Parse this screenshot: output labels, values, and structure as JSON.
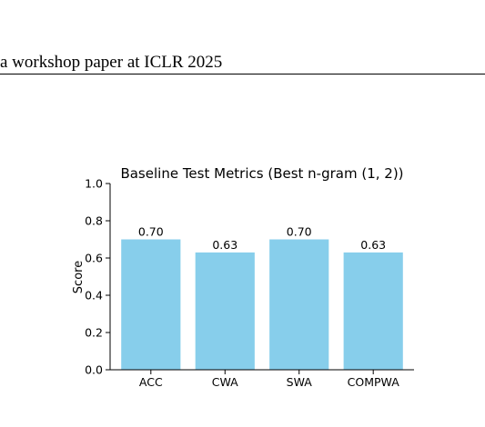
{
  "header": {
    "running_title": "a workshop paper at ICLR 2025"
  },
  "chart_data": {
    "type": "bar",
    "title": "Baseline Test Metrics (Best n-gram (1, 2))",
    "xlabel": "",
    "ylabel": "Score",
    "categories": [
      "ACC",
      "CWA",
      "SWA",
      "COMPWA"
    ],
    "values": [
      0.7,
      0.63,
      0.7,
      0.63
    ],
    "data_labels": [
      "0.70",
      "0.63",
      "0.70",
      "0.63"
    ],
    "ylim": [
      0,
      1.0
    ],
    "yticks": [
      0.0,
      0.2,
      0.4,
      0.6,
      0.8,
      1.0
    ],
    "ytick_labels": [
      "0.0",
      "0.2",
      "0.4",
      "0.6",
      "0.8",
      "1.0"
    ],
    "bar_color": "#87ceeb",
    "grid": false,
    "legend": false
  }
}
